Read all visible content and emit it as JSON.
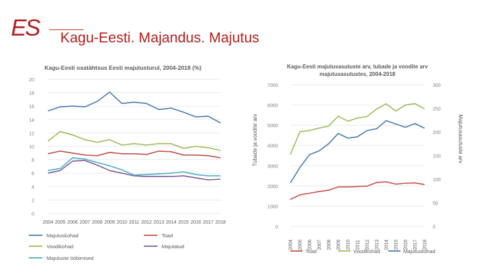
{
  "header": {
    "logo_text": "ES",
    "title": "Kagu-Eesti. Majandus. Majutus"
  },
  "colors": {
    "accent": "#b21f1f",
    "blue": "#4a7ab5",
    "red": "#c0504d",
    "green": "#9bbb59",
    "purple": "#7a5c99",
    "cyan": "#4bacc6"
  },
  "chart_data": [
    {
      "type": "line",
      "title": "Kagu-Eesti osatähtsus Eesti majutusturul, 2004-2018 (%)",
      "x": [
        "2004",
        "2005",
        "2006",
        "2007",
        "2008",
        "2009",
        "2010",
        "2011",
        "2012",
        "2013",
        "2014",
        "2015",
        "2016",
        "2017",
        "2018"
      ],
      "ylim": [
        0,
        20
      ],
      "yticks": [
        0,
        2,
        4,
        6,
        8,
        10,
        12,
        14,
        16,
        18,
        20
      ],
      "series": [
        {
          "name": "Majutuskohad",
          "color": "#4a7ab5",
          "values": [
            15.3,
            15.9,
            16.0,
            15.9,
            16.7,
            18.1,
            16.4,
            16.6,
            16.4,
            15.5,
            15.7,
            15.1,
            14.4,
            14.5,
            13.5
          ]
        },
        {
          "name": "Toad",
          "color": "#c0504d",
          "values": [
            8.9,
            9.3,
            9.0,
            8.7,
            8.6,
            9.1,
            8.9,
            8.9,
            8.8,
            9.3,
            9.2,
            8.7,
            8.7,
            8.6,
            8.3
          ]
        },
        {
          "name": "Voodikohad",
          "color": "#9bbb59",
          "values": [
            10.8,
            12.2,
            11.7,
            11.0,
            10.6,
            11.0,
            10.2,
            10.4,
            10.2,
            10.4,
            10.4,
            9.7,
            10.0,
            9.8,
            9.4
          ]
        },
        {
          "name": "Majutatud",
          "color": "#7a5c99",
          "values": [
            6.0,
            6.4,
            7.8,
            7.9,
            7.2,
            6.4,
            6.0,
            5.6,
            5.5,
            5.5,
            5.5,
            5.6,
            5.3,
            5.0,
            5.1
          ]
        },
        {
          "name": "Majutuste ööbimised",
          "color": "#4bacc6",
          "values": [
            6.4,
            6.7,
            8.3,
            8.1,
            7.6,
            7.1,
            6.5,
            5.7,
            5.8,
            5.9,
            6.0,
            6.2,
            5.8,
            5.6,
            5.6
          ]
        }
      ]
    },
    {
      "type": "line",
      "title_lines": [
        "Kagu-Eesti majutusasutuste arv, tubade ja voodite arv",
        "majutusasutustes, 2004-2018"
      ],
      "x": [
        "2004",
        "2005",
        "2006",
        "2007",
        "2008",
        "2009",
        "2010",
        "2011",
        "2012",
        "2013",
        "2014",
        "2015",
        "2016",
        "2017",
        "2018"
      ],
      "ylabel": "Tubade ja voodite arv",
      "y2label": "Majutusasutuste arv",
      "ylim": [
        0,
        7000
      ],
      "yticks": [
        0,
        1000,
        2000,
        3000,
        4000,
        5000,
        6000,
        7000
      ],
      "y2lim": [
        0,
        300
      ],
      "y2ticks": [
        0,
        50,
        100,
        150,
        200,
        250,
        300
      ],
      "series": [
        {
          "name": "Toad",
          "color": "#c0504d",
          "axis": "left",
          "values": [
            1330,
            1560,
            1640,
            1720,
            1790,
            1950,
            1950,
            1970,
            1990,
            2170,
            2200,
            2090,
            2130,
            2150,
            2070
          ]
        },
        {
          "name": "Voodikohad",
          "color": "#9bbb59",
          "axis": "left",
          "values": [
            3550,
            4680,
            4740,
            4860,
            4960,
            5450,
            5200,
            5360,
            5430,
            5800,
            6060,
            5700,
            6000,
            6070,
            5810
          ]
        },
        {
          "name": "Majutuskohad",
          "color": "#4a7ab5",
          "axis": "right",
          "values": [
            92,
            125,
            152,
            160,
            175,
            197,
            187,
            190,
            203,
            207,
            224,
            217,
            210,
            218,
            208
          ]
        }
      ]
    }
  ]
}
